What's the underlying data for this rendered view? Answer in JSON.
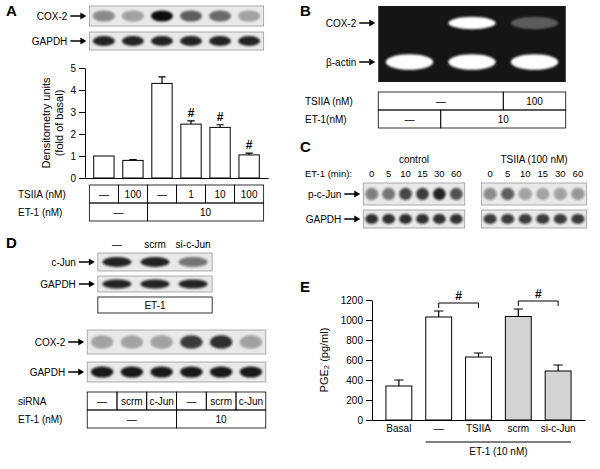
{
  "chart_data": [
    {
      "type": "bar",
      "y_label": [
        "Densitometry units",
        "(fold of basal)"
      ],
      "categories": [
        null,
        null,
        null,
        null,
        null,
        null
      ],
      "values": [
        1,
        0.8,
        4.3,
        2.45,
        2.3,
        1.05
      ],
      "errors": [
        null,
        0.04,
        0.3,
        0.15,
        0.12,
        0.08
      ],
      "significance": [
        null,
        null,
        null,
        "#",
        "#",
        "#"
      ],
      "color": "#ffffff",
      "ylim": [
        0,
        5
      ],
      "yticks": [
        0,
        1,
        2,
        3,
        4,
        5
      ]
    },
    {
      "type": "bar",
      "y_label": "PGE₂ (pg/ml)",
      "categories": [
        "Basal",
        "—",
        "TSIIA",
        "scrm",
        "si-c-Jun"
      ],
      "values": [
        340,
        1030,
        630,
        1035,
        490
      ],
      "errors": [
        60,
        60,
        40,
        75,
        60
      ],
      "colors": [
        "#ffffff",
        "#ffffff",
        "#ffffff",
        "#d3d3d3",
        "#d3d3d3"
      ],
      "ylim": [
        0,
        1200
      ],
      "yticks": [
        0,
        200,
        400,
        600,
        800,
        1000,
        1200
      ],
      "group_label": {
        "text": "ET-1 (10 nM)",
        "from": 1,
        "to": 4
      },
      "comparisons": [
        {
          "from": 1,
          "to": 2,
          "label": "#"
        },
        {
          "from": 3,
          "to": 4,
          "label": "#"
        }
      ]
    }
  ],
  "panels": [
    {
      "label": "A",
      "blot": {
        "rows": [
          {
            "label": "COX-2",
            "bands": [
              0.45,
              0.35,
              1.0,
              0.65,
              0.6,
              0.35
            ]
          },
          {
            "label": "GAPDH",
            "bands": [
              0.9,
              0.9,
              0.9,
              0.9,
              0.9,
              0.9
            ]
          }
        ]
      },
      "table": {
        "rows": [
          {
            "label": "TSIIA (nM)",
            "cells": [
              {
                "text": "—",
                "span": 1
              },
              {
                "text": "100",
                "span": 1
              },
              {
                "text": "—",
                "span": 1
              },
              {
                "text": "1",
                "span": 1
              },
              {
                "text": "10",
                "span": 1
              },
              {
                "text": "100",
                "span": 1
              }
            ]
          },
          {
            "label": "ET-1 (nM)",
            "cells": [
              {
                "text": "—",
                "span": 2
              },
              {
                "text": "10",
                "span": 4
              }
            ]
          }
        ]
      }
    },
    {
      "label": "B",
      "blot": {
        "rows": [
          {
            "label": "COX-2",
            "bands": [
              0,
              1.0,
              0.3
            ]
          },
          {
            "label": "β-actin",
            "bands": [
              1.0,
              1.0,
              1.0
            ]
          }
        ]
      },
      "table": {
        "rows": [
          {
            "label": "TSIIA (nM)",
            "cells": [
              {
                "text": "—",
                "span": 2
              },
              {
                "text": "100",
                "span": 1
              }
            ]
          },
          {
            "label": "ET-1(nM)",
            "cells": [
              {
                "text": "—",
                "span": 1
              },
              {
                "text": "10",
                "span": 2
              }
            ]
          }
        ]
      }
    },
    {
      "label": "C",
      "time_label": "ET-1 (min):",
      "times": [
        "0",
        "5",
        "10",
        "15",
        "30",
        "60"
      ],
      "blots": [
        {
          "header": "control",
          "rows": [
            {
              "label": "p-c-Jun",
              "bands": [
                0.5,
                0.55,
                0.75,
                0.8,
                0.9,
                0.7
              ]
            },
            {
              "label": "GAPDH",
              "bands": [
                0.85,
                0.85,
                0.85,
                0.85,
                0.85,
                0.85
              ]
            }
          ]
        },
        {
          "header": "TSIIA (100 nM)",
          "rows": [
            {
              "bands": [
                0.45,
                0.65,
                0.35,
                0.3,
                0.35,
                0.4
              ]
            },
            {
              "bands": [
                0.8,
                0.8,
                0.8,
                0.8,
                0.8,
                0.8
              ]
            }
          ]
        }
      ]
    },
    {
      "label": "D",
      "blots": [
        {
          "column_labels": [
            "—",
            "scrm",
            "si-c-Jun"
          ],
          "footer": "ET-1",
          "rows": [
            {
              "label": "c-Jun",
              "bands": [
                0.9,
                0.9,
                0.55
              ]
            },
            {
              "label": "GAPDH",
              "bands": [
                0.9,
                0.9,
                0.9
              ]
            }
          ]
        },
        {
          "rows": [
            {
              "label": "COX-2",
              "bands": [
                0.3,
                0.3,
                0.35,
                0.8,
                0.85,
                0.35
              ]
            },
            {
              "label": "GAPDH",
              "bands": [
                0.95,
                0.95,
                0.95,
                0.95,
                0.95,
                0.95
              ]
            }
          ]
        }
      ],
      "table": {
        "rows": [
          {
            "label": "siRNA",
            "cells": [
              {
                "text": "—",
                "span": 1
              },
              {
                "text": "scrm",
                "span": 1
              },
              {
                "text": "c-Jun",
                "span": 1
              },
              {
                "text": "—",
                "span": 1
              },
              {
                "text": "scrm",
                "span": 1
              },
              {
                "text": "c-Jun",
                "span": 1
              }
            ]
          },
          {
            "label": "ET-1 (nM)",
            "cells": [
              {
                "text": "—",
                "span": 3
              },
              {
                "text": "10",
                "span": 3
              }
            ]
          }
        ]
      }
    },
    {
      "label": "E"
    }
  ]
}
